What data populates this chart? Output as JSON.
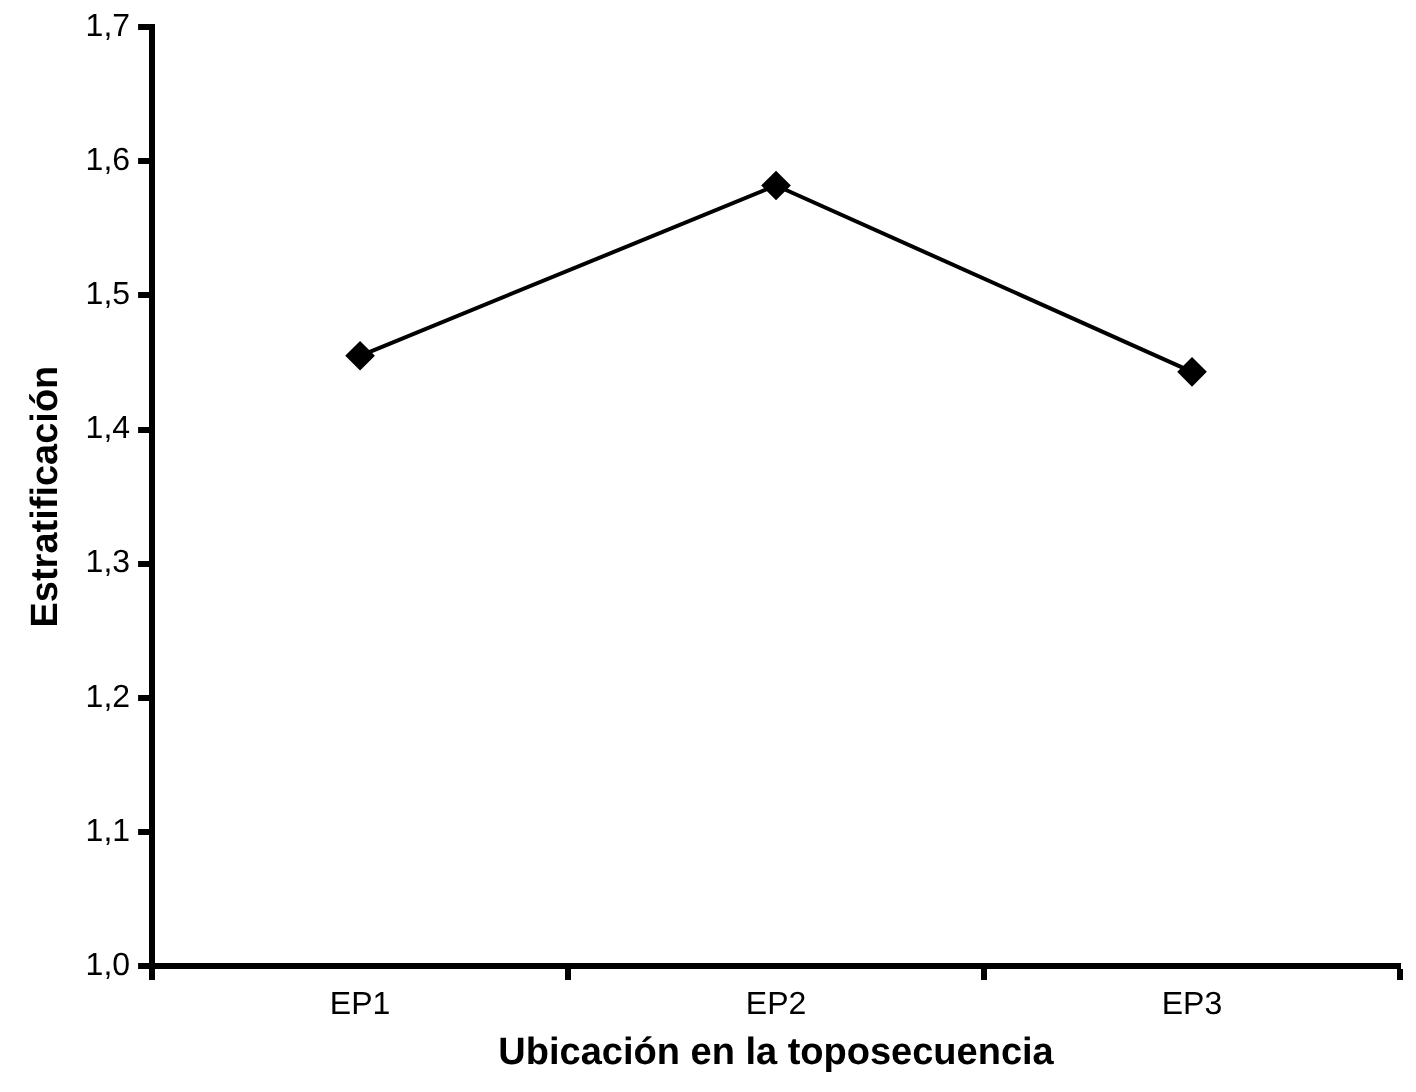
{
  "chart_data": {
    "type": "line",
    "xlabel": "Ubicación en la toposecuencia",
    "ylabel": "Estratificación",
    "categories": [
      "EP1",
      "EP2",
      "EP3"
    ],
    "series": [
      {
        "color": "#000000",
        "values": [
          1.455,
          1.582,
          1.443
        ]
      }
    ],
    "ylim": [
      1.0,
      1.7
    ],
    "yticks": [
      {
        "value": 1.0,
        "label": "1,0"
      },
      {
        "value": 1.1,
        "label": "1,1"
      },
      {
        "value": 1.2,
        "label": "1,2"
      },
      {
        "value": 1.3,
        "label": "1,3"
      },
      {
        "value": 1.4,
        "label": "1,4"
      },
      {
        "value": 1.5,
        "label": "1,5"
      },
      {
        "value": 1.6,
        "label": "1,6"
      },
      {
        "value": 1.7,
        "label": "1,7"
      }
    ],
    "grid": false,
    "legend": false,
    "marker": "diamond",
    "line_style": "solid"
  }
}
